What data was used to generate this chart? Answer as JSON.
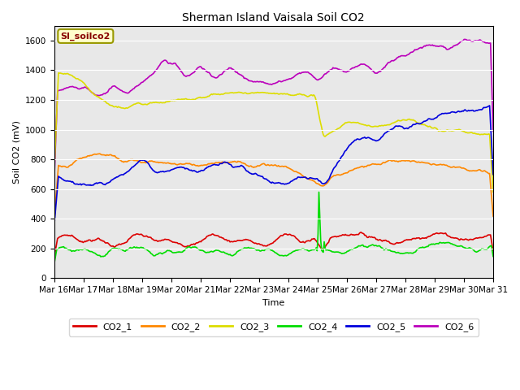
{
  "title": "Sherman Island Vaisala Soil CO2",
  "xlabel": "Time",
  "ylabel": "Soil CO2 (mV)",
  "legend_label": "SI_soilco2",
  "ylim": [
    0,
    1700
  ],
  "yticks": [
    0,
    200,
    400,
    600,
    800,
    1000,
    1200,
    1400,
    1600
  ],
  "x_labels": [
    "Mar 16",
    "Mar 17",
    "Mar 18",
    "Mar 19",
    "Mar 20",
    "Mar 21",
    "Mar 22",
    "Mar 23",
    "Mar 24",
    "Mar 25",
    "Mar 26",
    "Mar 27",
    "Mar 28",
    "Mar 29",
    "Mar 30",
    "Mar 31"
  ],
  "n_points": 500,
  "colors": {
    "CO2_1": "#dd0000",
    "CO2_2": "#ff8800",
    "CO2_3": "#dddd00",
    "CO2_4": "#00dd00",
    "CO2_5": "#0000dd",
    "CO2_6": "#bb00bb"
  },
  "bg_color": "#e8e8e8",
  "legend_box_color": "#ffffcc",
  "legend_box_edge": "#999900"
}
